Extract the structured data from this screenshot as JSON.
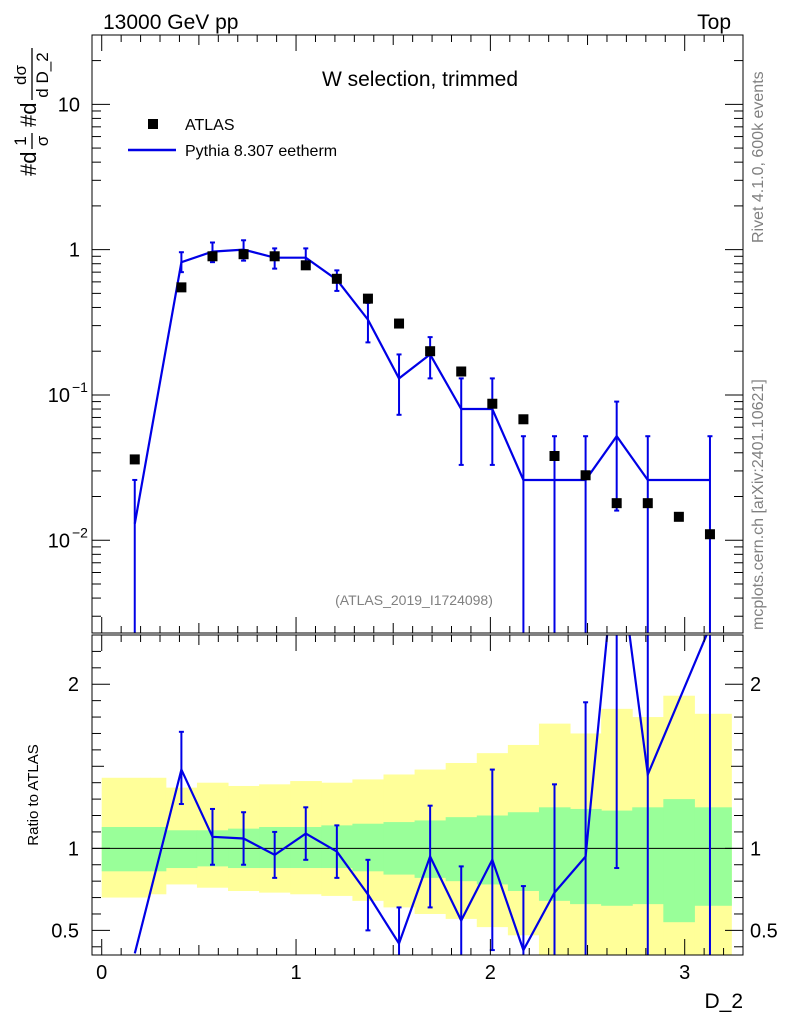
{
  "header": {
    "energy_label": "13000 GeV pp",
    "process_label": "Top"
  },
  "side": {
    "rivet_label": "Rivet 4.1.0,  600k events",
    "mcplots_label": "mcplots.cern.ch [arXiv:2401.10621]"
  },
  "chart_data": [
    {
      "type": "scatter",
      "title": "W selection, trimmed",
      "analysis_label": "(ATLAS_2019_I1724098)",
      "ylabel": {
        "prefix": "#d",
        "frac1_num": "1",
        "frac1_den": "σ",
        "mid": "#d",
        "frac2_num": "dσ",
        "frac2_den": "d D_2"
      },
      "xlabel": "D_2",
      "yscale": "log",
      "ylim": [
        0.0023,
        30
      ],
      "xlim": [
        -0.05,
        3.3
      ],
      "yticks": [
        {
          "value": 0.01,
          "base": "10",
          "exp": "−2"
        },
        {
          "value": 0.1,
          "base": "10",
          "exp": "−1"
        },
        {
          "value": 1,
          "base": "1",
          "exp": ""
        },
        {
          "value": 10,
          "base": "10",
          "exp": ""
        }
      ],
      "legend": {
        "position": "top-left",
        "data_label": "ATLAS",
        "mc_label": "Pythia 8.307 eetherm"
      },
      "series": [
        {
          "name": "ATLAS",
          "x": [
            0.17,
            0.41,
            0.57,
            0.73,
            0.89,
            1.05,
            1.21,
            1.37,
            1.53,
            1.69,
            1.85,
            2.01,
            2.17,
            2.33,
            2.49,
            2.65,
            2.81,
            2.97,
            3.13
          ],
          "y": [
            0.036,
            0.55,
            0.9,
            0.93,
            0.9,
            0.78,
            0.63,
            0.46,
            0.31,
            0.2,
            0.145,
            0.087,
            0.068,
            0.038,
            0.028,
            0.018,
            0.018,
            0.0145,
            0.011
          ]
        },
        {
          "name": "Pythia 8.307 eetherm",
          "x": [
            0.17,
            0.41,
            0.57,
            0.73,
            0.89,
            1.05,
            1.21,
            1.37,
            1.53,
            1.69,
            1.85,
            2.01,
            2.17,
            2.33,
            2.49,
            2.65,
            2.81,
            2.97,
            3.13
          ],
          "y": [
            0.013,
            0.82,
            0.97,
            1.0,
            0.88,
            0.88,
            0.62,
            0.33,
            0.13,
            0.19,
            0.08,
            0.08,
            0.026,
            0.026,
            0.026,
            0.052,
            0.026,
            0.026,
            0.026
          ],
          "err_low": [
            0.0022,
            0.7,
            0.82,
            0.84,
            0.74,
            0.74,
            0.52,
            0.23,
            0.073,
            0.13,
            0.033,
            0.033,
            0.0022,
            0.0022,
            0.0022,
            0.016,
            0.0022,
            null,
            0.0022
          ],
          "err_high": [
            0.026,
            0.96,
            1.12,
            1.16,
            1.02,
            1.02,
            0.72,
            0.43,
            0.19,
            0.25,
            0.13,
            0.13,
            0.052,
            0.052,
            0.052,
            0.09,
            0.052,
            null,
            0.052
          ]
        }
      ]
    },
    {
      "type": "line",
      "ylabel": "Ratio to ATLAS",
      "xlabel": "D_2",
      "xlim": [
        -0.05,
        3.3
      ],
      "ylim": [
        0.35,
        2.3
      ],
      "yticks": [
        0.5,
        1,
        2
      ],
      "xticks": [
        0,
        1,
        2,
        3
      ],
      "reference_line": 1,
      "bands": {
        "edges": [
          0.0,
          0.25,
          0.33,
          0.49,
          0.65,
          0.81,
          0.97,
          1.13,
          1.29,
          1.45,
          1.61,
          1.77,
          1.93,
          2.09,
          2.25,
          2.41,
          2.57,
          2.73,
          2.89,
          3.05,
          3.24
        ],
        "yellow_lo": [
          0.7,
          0.72,
          0.78,
          0.76,
          0.74,
          0.73,
          0.72,
          0.71,
          0.68,
          0.64,
          0.6,
          0.57,
          0.52,
          0.47,
          0.35,
          0.35,
          0.35,
          0.35,
          0.35,
          0.35
        ],
        "yellow_hi": [
          1.43,
          1.43,
          1.37,
          1.4,
          1.38,
          1.39,
          1.41,
          1.4,
          1.42,
          1.45,
          1.48,
          1.52,
          1.58,
          1.63,
          1.76,
          1.7,
          1.85,
          1.8,
          1.93,
          1.82
        ],
        "green_lo": [
          0.86,
          0.86,
          0.88,
          0.89,
          0.88,
          0.88,
          0.88,
          0.88,
          0.86,
          0.84,
          0.82,
          0.8,
          0.78,
          0.74,
          0.68,
          0.66,
          0.65,
          0.66,
          0.55,
          0.65
        ],
        "green_hi": [
          1.13,
          1.13,
          1.11,
          1.11,
          1.12,
          1.13,
          1.13,
          1.14,
          1.15,
          1.16,
          1.17,
          1.19,
          1.2,
          1.22,
          1.25,
          1.24,
          1.23,
          1.25,
          1.3,
          1.25
        ]
      },
      "series": [
        {
          "name": "Pythia 8.307 eetherm / ATLAS",
          "x": [
            0.17,
            0.41,
            0.57,
            0.73,
            0.89,
            1.05,
            1.21,
            1.37,
            1.53,
            1.69,
            1.85,
            2.01,
            2.17,
            2.33,
            2.49,
            2.65,
            2.81,
            3.13
          ],
          "y": [
            0.36,
            1.48,
            1.07,
            1.06,
            0.96,
            1.09,
            0.98,
            0.72,
            0.42,
            0.95,
            0.56,
            0.93,
            0.38,
            0.73,
            0.95,
            2.9,
            1.45,
            2.35
          ],
          "err_low": [
            null,
            1.27,
            0.9,
            0.9,
            0.82,
            0.93,
            0.82,
            0.5,
            0.2,
            0.64,
            0.23,
            0.38,
            0.03,
            0.06,
            0.08,
            0.88,
            0.12,
            0.2
          ],
          "err_high": [
            null,
            1.71,
            1.24,
            1.22,
            1.1,
            1.25,
            1.14,
            0.93,
            0.64,
            1.26,
            0.89,
            1.48,
            0.77,
            1.39,
            1.89,
            4.9,
            2.9,
            4.8
          ]
        }
      ]
    }
  ]
}
